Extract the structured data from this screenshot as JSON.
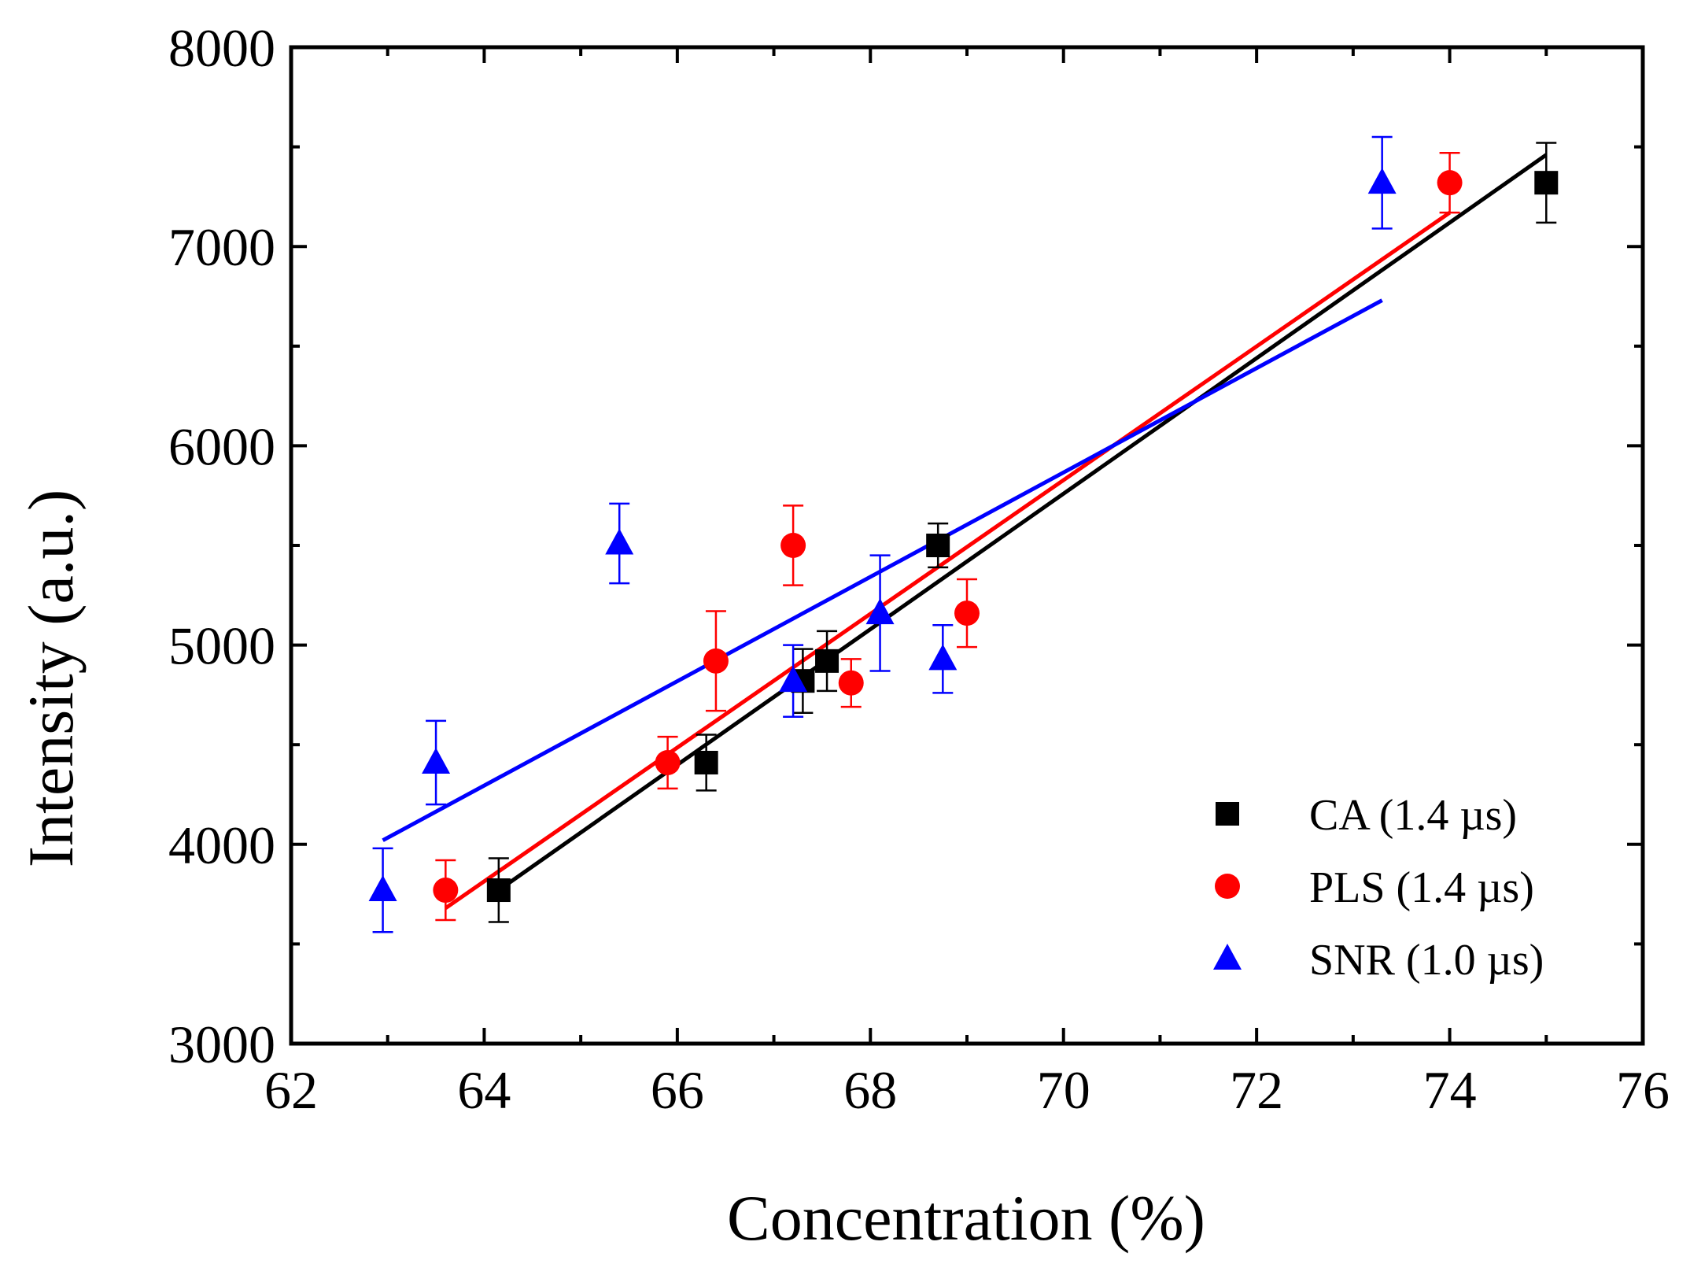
{
  "chart_data": {
    "type": "scatter",
    "title": "",
    "xlabel": "Concentration (%)",
    "ylabel": "Intensity (a.u.)",
    "xlim": [
      62,
      76
    ],
    "ylim": [
      3000,
      8000
    ],
    "xticks": [
      62,
      64,
      66,
      68,
      70,
      72,
      74,
      76
    ],
    "yticks": [
      3000,
      4000,
      5000,
      6000,
      7000,
      8000
    ],
    "xtick_labels": [
      "62",
      "64",
      "66",
      "68",
      "70",
      "72",
      "74",
      "76"
    ],
    "ytick_labels": [
      "3000",
      "4000",
      "5000",
      "6000",
      "7000",
      "8000"
    ],
    "legend_position": "bottom-right",
    "series": [
      {
        "name": "CA (1.4 µs)",
        "label_text": "CA (1.4 µs)",
        "color": "#000000",
        "marker": "square",
        "x": [
          64.15,
          66.3,
          67.3,
          67.55,
          68.7,
          75.0
        ],
        "y": [
          3770,
          4410,
          4820,
          4920,
          5500,
          7320
        ],
        "err": [
          160,
          140,
          160,
          150,
          110,
          200
        ],
        "fit": {
          "x": [
            64.15,
            75.0
          ],
          "y": [
            3770,
            7460
          ]
        }
      },
      {
        "name": "PLS (1.4 µs)",
        "label_text": "PLS (1.4 µs)",
        "color": "#ff0000",
        "marker": "circle",
        "x": [
          63.6,
          65.9,
          66.4,
          67.2,
          67.8,
          69.0,
          74.0
        ],
        "y": [
          3770,
          4410,
          4920,
          5500,
          4810,
          5160,
          7320
        ],
        "err": [
          150,
          130,
          250,
          200,
          120,
          170,
          150
        ],
        "fit": {
          "x": [
            63.6,
            74.0
          ],
          "y": [
            3680,
            7170
          ]
        }
      },
      {
        "name": "SNR (1.0 µs)",
        "label_text": "SNR (1.0 µs)",
        "color": "#0000ff",
        "marker": "triangle",
        "x": [
          62.95,
          63.5,
          65.4,
          67.2,
          68.1,
          68.75,
          73.3
        ],
        "y": [
          3770,
          4410,
          5510,
          4820,
          5160,
          4930,
          7320
        ],
        "err": [
          210,
          210,
          200,
          180,
          290,
          170,
          230
        ],
        "fit": {
          "x": [
            62.95,
            73.3
          ],
          "y": [
            4020,
            6730
          ]
        }
      }
    ]
  }
}
